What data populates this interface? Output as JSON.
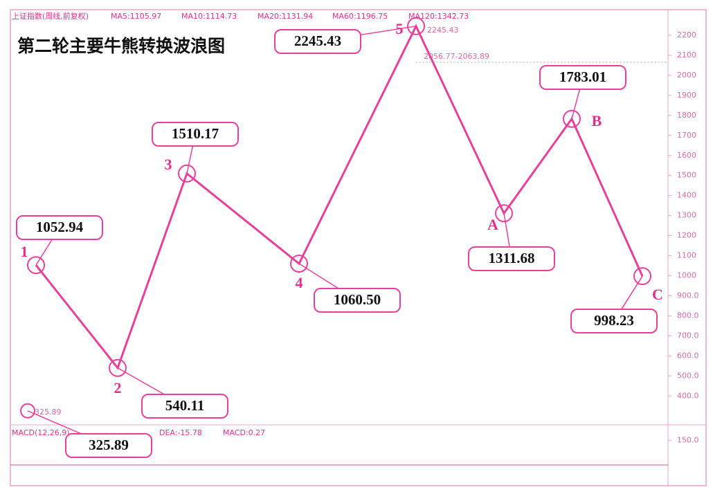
{
  "chart_data": {
    "type": "line",
    "title": "第二轮主要牛熊转换波浪图",
    "header": [
      "上证指数(周线,前复权)",
      "MA5:1105.97",
      "MA10:1114.73",
      "MA20:1131.94",
      "MA60:1196.75",
      "MA120:1342.73"
    ],
    "categories": [
      "1",
      "2",
      "3",
      "4",
      "5",
      "A",
      "B",
      "C"
    ],
    "values": [
      1052.94,
      540.11,
      1510.17,
      1060.5,
      2245.43,
      1311.68,
      1783.01,
      998.23
    ],
    "value_labels": [
      "1052.94",
      "540.11",
      "1510.17",
      "1060.50",
      "2245.43",
      "1311.68",
      "1783.01",
      "998.23"
    ],
    "color": "#e8409a",
    "low": {
      "value": 325.89,
      "label": "325.89"
    },
    "range_note": "2056.77-2063.89",
    "ylim": [
      270,
      2300
    ],
    "yticks": [
      2200,
      2100,
      2000,
      1900,
      1800,
      1700,
      1600,
      1500,
      1400,
      1300,
      1200,
      1100,
      1000,
      {
        "value": 900,
        "label": "900.0"
      },
      {
        "value": 800,
        "label": "800.0"
      },
      {
        "value": 700,
        "label": "700.0"
      },
      {
        "value": 600,
        "label": "600.0"
      },
      {
        "value": 500,
        "label": "500.0"
      },
      {
        "value": 400,
        "label": "400.0"
      }
    ],
    "grid": false,
    "macd": {
      "header": [
        "MACD(12,26,9)",
        "DEA:-15.78",
        "MACD:0.27"
      ],
      "y2lim": [
        -120,
        240
      ],
      "y2ticks": [
        {
          "value": 150,
          "label": "150.0"
        }
      ]
    }
  }
}
